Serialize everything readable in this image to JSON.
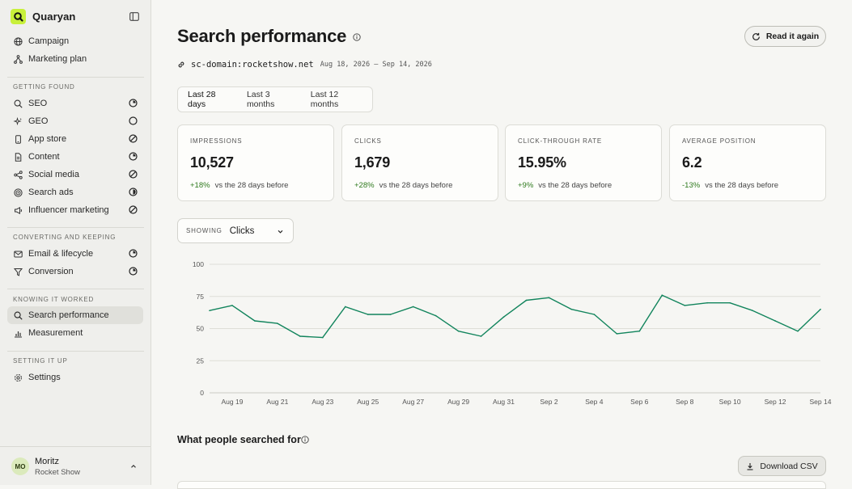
{
  "sidebar": {
    "brand": "Quaryan",
    "top_items": [
      {
        "label": "Campaign",
        "icon": "globe-icon"
      },
      {
        "label": "Marketing plan",
        "icon": "flow-icon"
      }
    ],
    "sections": [
      {
        "label": "GETTING FOUND",
        "items": [
          {
            "label": "SEO",
            "icon": "search-icon",
            "status": "progress-partial"
          },
          {
            "label": "GEO",
            "icon": "sparkle-icon",
            "status": "not-started"
          },
          {
            "label": "App store",
            "icon": "phone-icon",
            "status": "skipped"
          },
          {
            "label": "Content",
            "icon": "document-icon",
            "status": "progress-partial"
          },
          {
            "label": "Social media",
            "icon": "share-icon",
            "status": "skipped"
          },
          {
            "label": "Search ads",
            "icon": "target-icon",
            "status": "progress-half"
          },
          {
            "label": "Influencer marketing",
            "icon": "megaphone-icon",
            "status": "skipped"
          }
        ]
      },
      {
        "label": "CONVERTING AND KEEPING",
        "items": [
          {
            "label": "Email & lifecycle",
            "icon": "mail-icon",
            "status": "progress-partial"
          },
          {
            "label": "Conversion",
            "icon": "funnel-icon",
            "status": "progress-partial"
          }
        ]
      },
      {
        "label": "KNOWING IT WORKED",
        "items": [
          {
            "label": "Search performance",
            "icon": "search-icon",
            "active": true
          },
          {
            "label": "Measurement",
            "icon": "bar-chart-icon"
          }
        ]
      },
      {
        "label": "SETTING IT UP",
        "items": [
          {
            "label": "Settings",
            "icon": "gear-icon"
          }
        ]
      }
    ],
    "user": {
      "initials": "MO",
      "name": "Moritz",
      "org": "Rocket Show"
    }
  },
  "header": {
    "title": "Search performance",
    "read_button": "Read it again",
    "domain": "sc-domain:rocketshow.net",
    "date_range": "Aug 18, 2026 – Sep 14, 2026"
  },
  "tabs": [
    {
      "label": "Last 28 days",
      "active": true
    },
    {
      "label": "Last 3 months",
      "active": false
    },
    {
      "label": "Last 12 months",
      "active": false
    }
  ],
  "metrics": [
    {
      "label": "IMPRESSIONS",
      "value": "10,527",
      "delta": "+18%",
      "note": "vs the 28 days before"
    },
    {
      "label": "CLICKS",
      "value": "1,679",
      "delta": "+28%",
      "note": "vs the 28 days before"
    },
    {
      "label": "CLICK-THROUGH RATE",
      "value": "15.95%",
      "delta": "+9%",
      "note": "vs the 28 days before"
    },
    {
      "label": "AVERAGE POSITION",
      "value": "6.2",
      "delta": "-13%",
      "note": "vs the 28 days before"
    }
  ],
  "showing": {
    "label": "SHOWING",
    "value": "Clicks"
  },
  "chart_data": {
    "type": "line",
    "x": [
      "Aug 18",
      "Aug 19",
      "Aug 20",
      "Aug 21",
      "Aug 22",
      "Aug 23",
      "Aug 24",
      "Aug 25",
      "Aug 26",
      "Aug 27",
      "Aug 28",
      "Aug 29",
      "Aug 30",
      "Aug 31",
      "Sep 1",
      "Sep 2",
      "Sep 3",
      "Sep 4",
      "Sep 5",
      "Sep 6",
      "Sep 7",
      "Sep 8",
      "Sep 9",
      "Sep 10",
      "Sep 11",
      "Sep 12",
      "Sep 13",
      "Sep 14"
    ],
    "x_tick_labels": [
      "Aug 19",
      "Aug 21",
      "Aug 23",
      "Aug 25",
      "Aug 27",
      "Aug 29",
      "Aug 31",
      "Sep 2",
      "Sep 4",
      "Sep 6",
      "Sep 8",
      "Sep 10",
      "Sep 12",
      "Sep 14"
    ],
    "series": [
      {
        "values": [
          64,
          68,
          56,
          54,
          44,
          43,
          67,
          61,
          61,
          67,
          60,
          48,
          44,
          59,
          72,
          74,
          65,
          61,
          46,
          48,
          76,
          68,
          70,
          70,
          64,
          56,
          48,
          65
        ]
      }
    ],
    "y_ticks": [
      0,
      25,
      50,
      75,
      100
    ],
    "ylim": [
      0,
      100
    ],
    "grid": true,
    "line_color": "#11845c"
  },
  "table_section": {
    "title": "What people searched for",
    "download_button": "Download CSV"
  }
}
